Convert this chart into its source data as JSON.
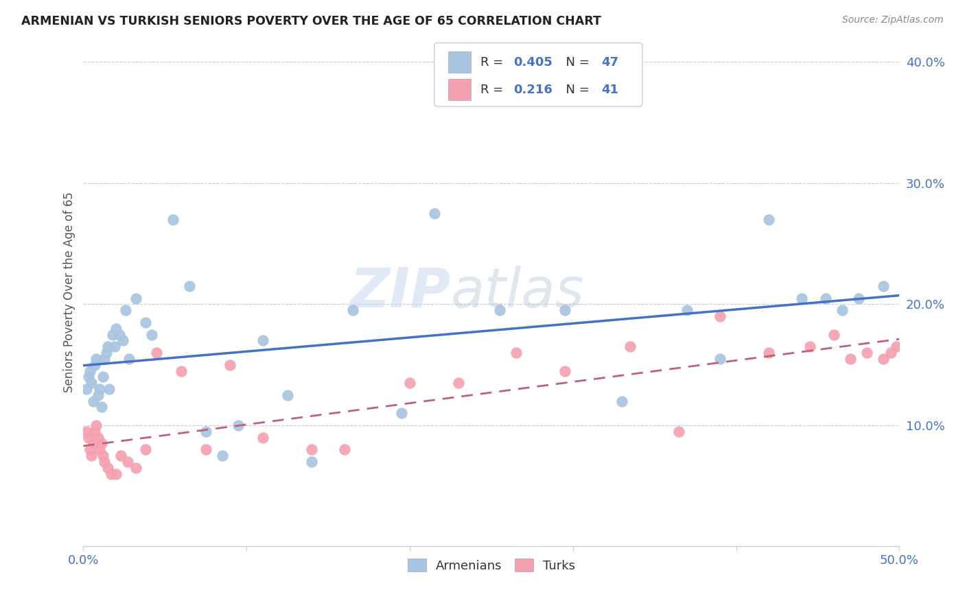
{
  "title": "ARMENIAN VS TURKISH SENIORS POVERTY OVER THE AGE OF 65 CORRELATION CHART",
  "source": "Source: ZipAtlas.com",
  "ylabel": "Seniors Poverty Over the Age of 65",
  "xlim": [
    0.0,
    0.5
  ],
  "ylim": [
    0.0,
    0.42
  ],
  "xticks": [
    0.0,
    0.1,
    0.2,
    0.3,
    0.4,
    0.5
  ],
  "yticks": [
    0.1,
    0.2,
    0.3,
    0.4
  ],
  "legend_r_armenian": "0.405",
  "legend_n_armenian": "47",
  "legend_r_turk": "0.216",
  "legend_n_turk": "41",
  "armenian_color": "#a8c4e0",
  "turk_color": "#f4a0b0",
  "armenian_line_color": "#4472c4",
  "turk_line_color": "#c0607a",
  "background_color": "#ffffff",
  "watermark_zip": "ZIP",
  "watermark_atlas": "atlas",
  "armenian_x": [
    0.002,
    0.003,
    0.004,
    0.005,
    0.006,
    0.007,
    0.008,
    0.009,
    0.01,
    0.011,
    0.012,
    0.013,
    0.014,
    0.015,
    0.016,
    0.018,
    0.019,
    0.02,
    0.022,
    0.024,
    0.026,
    0.028,
    0.032,
    0.038,
    0.042,
    0.055,
    0.065,
    0.075,
    0.085,
    0.095,
    0.11,
    0.125,
    0.14,
    0.165,
    0.195,
    0.215,
    0.255,
    0.295,
    0.33,
    0.37,
    0.39,
    0.42,
    0.44,
    0.455,
    0.465,
    0.475,
    0.49
  ],
  "armenian_y": [
    0.13,
    0.14,
    0.145,
    0.135,
    0.12,
    0.15,
    0.155,
    0.125,
    0.13,
    0.115,
    0.14,
    0.155,
    0.16,
    0.165,
    0.13,
    0.175,
    0.165,
    0.18,
    0.175,
    0.17,
    0.195,
    0.155,
    0.205,
    0.185,
    0.175,
    0.27,
    0.215,
    0.095,
    0.075,
    0.1,
    0.17,
    0.125,
    0.07,
    0.195,
    0.11,
    0.275,
    0.195,
    0.195,
    0.12,
    0.195,
    0.155,
    0.27,
    0.205,
    0.205,
    0.195,
    0.205,
    0.215
  ],
  "turk_x": [
    0.002,
    0.003,
    0.004,
    0.005,
    0.006,
    0.007,
    0.008,
    0.009,
    0.01,
    0.011,
    0.012,
    0.013,
    0.015,
    0.017,
    0.02,
    0.023,
    0.027,
    0.032,
    0.038,
    0.045,
    0.06,
    0.075,
    0.09,
    0.11,
    0.14,
    0.16,
    0.2,
    0.23,
    0.265,
    0.295,
    0.335,
    0.365,
    0.39,
    0.42,
    0.445,
    0.46,
    0.47,
    0.48,
    0.49,
    0.495,
    0.498
  ],
  "turk_y": [
    0.095,
    0.09,
    0.08,
    0.075,
    0.085,
    0.095,
    0.1,
    0.09,
    0.08,
    0.085,
    0.075,
    0.07,
    0.065,
    0.06,
    0.06,
    0.075,
    0.07,
    0.065,
    0.08,
    0.16,
    0.145,
    0.08,
    0.15,
    0.09,
    0.08,
    0.08,
    0.135,
    0.135,
    0.16,
    0.145,
    0.165,
    0.095,
    0.19,
    0.16,
    0.165,
    0.175,
    0.155,
    0.16,
    0.155,
    0.16,
    0.165
  ]
}
